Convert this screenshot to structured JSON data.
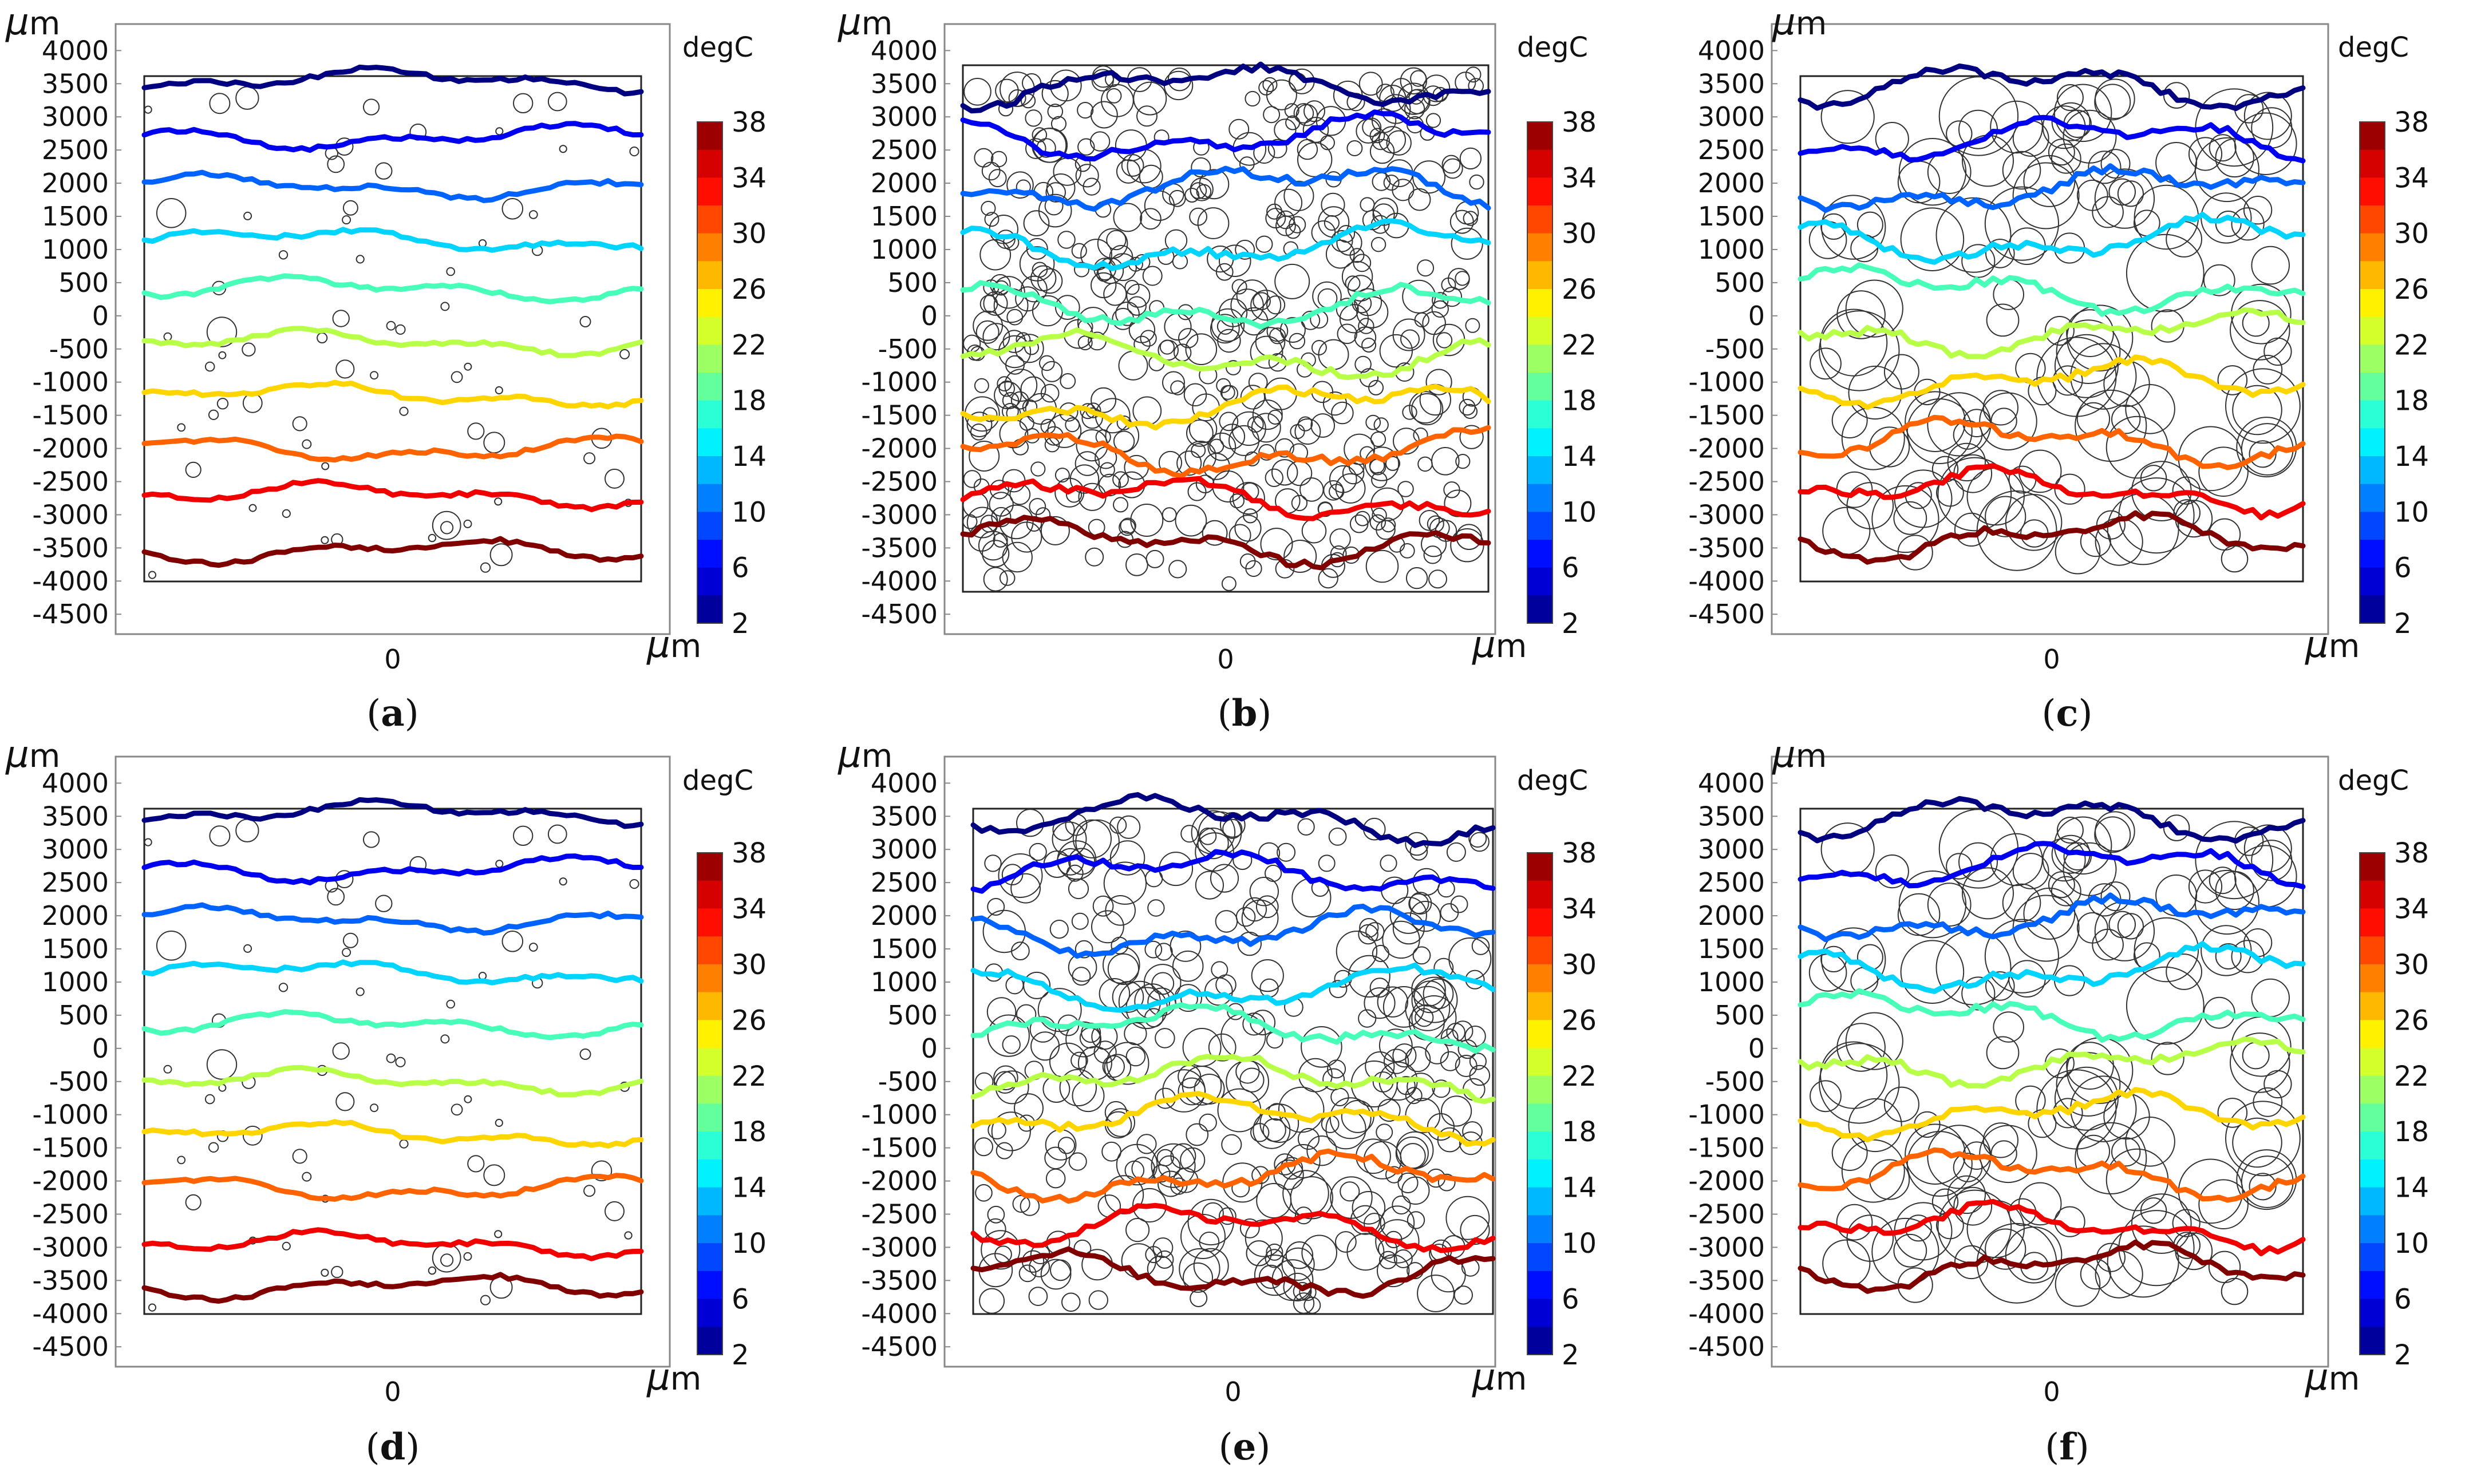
{
  "figure": {
    "panels": [
      {
        "id": "a",
        "caption": "(a)",
        "caption_letter": "a"
      },
      {
        "id": "b",
        "caption": "(b)",
        "caption_letter": "b"
      },
      {
        "id": "c",
        "caption": "(c)",
        "caption_letter": "c"
      },
      {
        "id": "d",
        "caption": "(d)",
        "caption_letter": "d"
      },
      {
        "id": "e",
        "caption": "(e)",
        "caption_letter": "e"
      },
      {
        "id": "f",
        "caption": "(f)",
        "caption_letter": "f"
      }
    ],
    "axis_unit_mu": "μ",
    "axis_unit_m": "m",
    "colorbar_title": "degC",
    "x_tick_label": "0"
  },
  "chart_data": [
    {
      "panel": "a",
      "type": "contour",
      "y_ticks": [
        4000,
        3500,
        3000,
        2500,
        2000,
        1500,
        1000,
        500,
        0,
        -500,
        -1000,
        -1500,
        -2000,
        -2500,
        -3000,
        -3500,
        -4000,
        -4500
      ],
      "ylim": [
        -4800,
        4400
      ],
      "x_ticks": [
        0
      ],
      "domain_y": [
        -4000,
        4000
      ],
      "colorbar": {
        "title": "degC",
        "ticks": [
          38,
          34,
          30,
          26,
          22,
          18,
          14,
          10,
          6,
          2
        ],
        "range": [
          2,
          38
        ],
        "levels": 18
      },
      "isotherms": [
        {
          "temp": 2,
          "y": 3550
        },
        {
          "temp": 6,
          "y": 2700
        },
        {
          "temp": 10,
          "y": 1950
        },
        {
          "temp": 14,
          "y": 1150
        },
        {
          "temp": 18,
          "y": 400
        },
        {
          "temp": 22,
          "y": -400
        },
        {
          "temp": 26,
          "y": -1200
        },
        {
          "temp": 30,
          "y": -2000
        },
        {
          "temp": 34,
          "y": -2700
        },
        {
          "temp": 38,
          "y": -3550
        }
      ],
      "inclusion_density": "sparse-small"
    },
    {
      "panel": "b",
      "type": "contour",
      "y_ticks": [
        4000,
        3500,
        3000,
        2500,
        2000,
        1500,
        1000,
        500,
        0,
        -500,
        -1000,
        -1500,
        -2000,
        -2500,
        -3000,
        -3500,
        -4000,
        -4500
      ],
      "ylim": [
        -4800,
        4400
      ],
      "x_ticks": [
        0
      ],
      "domain_y": [
        -4000,
        4000
      ],
      "colorbar": {
        "title": "degC",
        "ticks": [
          38,
          34,
          30,
          26,
          22,
          18,
          14,
          10,
          6,
          2
        ],
        "range": [
          2,
          38
        ],
        "levels": 18
      },
      "isotherms": [
        {
          "temp": 2,
          "y": 3450
        },
        {
          "temp": 6,
          "y": 2700
        },
        {
          "temp": 10,
          "y": 1950
        },
        {
          "temp": 14,
          "y": 1050
        },
        {
          "temp": 18,
          "y": 150
        },
        {
          "temp": 22,
          "y": -600
        },
        {
          "temp": 26,
          "y": -1350
        },
        {
          "temp": 30,
          "y": -2050
        },
        {
          "temp": 34,
          "y": -2750
        },
        {
          "temp": 38,
          "y": -3400
        }
      ],
      "inclusion_density": "dense-small"
    },
    {
      "panel": "c",
      "type": "contour",
      "y_ticks": [
        4000,
        3500,
        3000,
        2500,
        2000,
        1500,
        1000,
        500,
        0,
        -500,
        -1000,
        -1500,
        -2000,
        -2500,
        -3000,
        -3500,
        -4000,
        -4500
      ],
      "ylim": [
        -4800,
        4400
      ],
      "x_ticks": [
        0
      ],
      "domain_y": [
        -4000,
        4000
      ],
      "colorbar": {
        "title": "degC",
        "ticks": [
          38,
          34,
          30,
          26,
          22,
          18,
          14,
          10,
          6,
          2
        ],
        "range": [
          2,
          38
        ],
        "levels": 18
      },
      "isotherms": [
        {
          "temp": 2,
          "y": 3450
        },
        {
          "temp": 6,
          "y": 2650
        },
        {
          "temp": 10,
          "y": 1900
        },
        {
          "temp": 14,
          "y": 1150
        },
        {
          "temp": 18,
          "y": 400
        },
        {
          "temp": 22,
          "y": -250
        },
        {
          "temp": 26,
          "y": -1000
        },
        {
          "temp": 30,
          "y": -1900
        },
        {
          "temp": 34,
          "y": -2650
        },
        {
          "temp": 38,
          "y": -3350
        }
      ],
      "inclusion_density": "dense-large"
    },
    {
      "panel": "d",
      "type": "contour",
      "y_ticks": [
        4000,
        3500,
        3000,
        2500,
        2000,
        1500,
        1000,
        500,
        0,
        -500,
        -1000,
        -1500,
        -2000,
        -2500,
        -3000,
        -3500,
        -4000,
        -4500
      ],
      "ylim": [
        -4800,
        4400
      ],
      "x_ticks": [
        0
      ],
      "domain_y": [
        -4000,
        4000
      ],
      "colorbar": {
        "title": "degC",
        "ticks": [
          38,
          34,
          30,
          26,
          22,
          18,
          14,
          10,
          6,
          2
        ],
        "range": [
          2,
          38
        ],
        "levels": 18
      },
      "isotherms": [
        {
          "temp": 2,
          "y": 3550
        },
        {
          "temp": 6,
          "y": 2700
        },
        {
          "temp": 10,
          "y": 1950
        },
        {
          "temp": 14,
          "y": 1150
        },
        {
          "temp": 18,
          "y": 350
        },
        {
          "temp": 22,
          "y": -500
        },
        {
          "temp": 26,
          "y": -1300
        },
        {
          "temp": 30,
          "y": -2100
        },
        {
          "temp": 34,
          "y": -2950
        },
        {
          "temp": 38,
          "y": -3600
        }
      ],
      "inclusion_density": "sparse-small"
    },
    {
      "panel": "e",
      "type": "contour",
      "y_ticks": [
        4000,
        3500,
        3000,
        2500,
        2000,
        1500,
        1000,
        500,
        0,
        -500,
        -1000,
        -1500,
        -2000,
        -2500,
        -3000,
        -3500,
        -4000,
        -4500
      ],
      "ylim": [
        -4800,
        4400
      ],
      "x_ticks": [
        0
      ],
      "domain_y": [
        -4000,
        4000
      ],
      "colorbar": {
        "title": "degC",
        "ticks": [
          38,
          34,
          30,
          26,
          22,
          18,
          14,
          10,
          6,
          2
        ],
        "range": [
          2,
          38
        ],
        "levels": 18
      },
      "isotherms": [
        {
          "temp": 2,
          "y": 3450
        },
        {
          "temp": 6,
          "y": 2650
        },
        {
          "temp": 10,
          "y": 1750
        },
        {
          "temp": 14,
          "y": 900
        },
        {
          "temp": 18,
          "y": 300
        },
        {
          "temp": 22,
          "y": -450
        },
        {
          "temp": 26,
          "y": -1050
        },
        {
          "temp": 30,
          "y": -1950
        },
        {
          "temp": 34,
          "y": -2700
        },
        {
          "temp": 38,
          "y": -3400
        }
      ],
      "inclusion_density": "dense-medium"
    },
    {
      "panel": "f",
      "type": "contour",
      "y_ticks": [
        4000,
        3500,
        3000,
        2500,
        2000,
        1500,
        1000,
        500,
        0,
        -500,
        -1000,
        -1500,
        -2000,
        -2500,
        -3000,
        -3500,
        -4000,
        -4500
      ],
      "ylim": [
        -4800,
        4400
      ],
      "x_ticks": [
        0
      ],
      "domain_y": [
        -4000,
        4000
      ],
      "colorbar": {
        "title": "degC",
        "ticks": [
          38,
          34,
          30,
          26,
          22,
          18,
          14,
          10,
          6,
          2
        ],
        "range": [
          2,
          38
        ],
        "levels": 18
      },
      "isotherms": [
        {
          "temp": 2,
          "y": 3450
        },
        {
          "temp": 6,
          "y": 2750
        },
        {
          "temp": 10,
          "y": 1950
        },
        {
          "temp": 14,
          "y": 1200
        },
        {
          "temp": 18,
          "y": 500
        },
        {
          "temp": 22,
          "y": -200
        },
        {
          "temp": 26,
          "y": -1000
        },
        {
          "temp": 30,
          "y": -1900
        },
        {
          "temp": 34,
          "y": -2700
        },
        {
          "temp": 38,
          "y": -3300
        }
      ],
      "inclusion_density": "dense-large"
    }
  ]
}
